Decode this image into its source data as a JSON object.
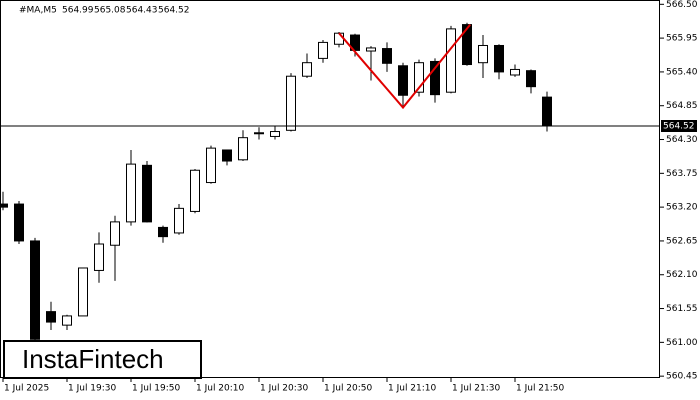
{
  "chart_data": {
    "type": "candlestick",
    "symbol": "#MA,M5",
    "watermark": "InstaFintech",
    "categories": [
      "1 Jul 2025",
      null,
      null,
      null,
      "1 Jul 19:30",
      null,
      null,
      null,
      "1 Jul 19:50",
      null,
      null,
      null,
      "1 Jul 20:10",
      null,
      null,
      null,
      "1 Jul 20:30",
      null,
      null,
      null,
      "1 Jul 20:50",
      null,
      null,
      null,
      "1 Jul 21:10",
      null,
      null,
      null,
      "1 Jul 21:30",
      null,
      null,
      null,
      "1 Jul 21:50",
      null,
      null
    ],
    "open": [
      563.25,
      563.25,
      562.65,
      561.5,
      561.28,
      561.43,
      562.17,
      562.58,
      562.96,
      563.88,
      562.87,
      562.78,
      563.13,
      563.6,
      564.13,
      563.97,
      564.4,
      564.35,
      564.45,
      565.33,
      565.62,
      565.85,
      566.0,
      565.74,
      565.78,
      565.5,
      565.07,
      565.57,
      565.07,
      566.17,
      565.55,
      565.83,
      565.35,
      565.42,
      564.99
    ],
    "high": [
      563.45,
      563.3,
      562.7,
      561.66,
      561.45,
      562.21,
      562.79,
      563.06,
      564.13,
      563.95,
      562.9,
      563.25,
      563.82,
      564.2,
      564.13,
      564.45,
      564.5,
      564.52,
      565.38,
      565.7,
      565.92,
      566.05,
      566.02,
      565.82,
      565.88,
      565.55,
      565.6,
      565.62,
      566.15,
      566.2,
      566.0,
      565.85,
      565.52,
      565.44,
      565.08
    ],
    "low": [
      563.15,
      562.6,
      560.9,
      561.2,
      561.2,
      561.43,
      561.97,
      562.0,
      562.9,
      562.95,
      562.62,
      562.75,
      563.1,
      563.58,
      563.88,
      563.95,
      564.3,
      564.3,
      564.43,
      565.3,
      565.55,
      565.8,
      565.65,
      565.26,
      565.4,
      564.85,
      565.0,
      564.9,
      565.05,
      565.5,
      565.3,
      565.28,
      565.32,
      565.05,
      564.43
    ],
    "close": [
      563.2,
      562.65,
      561.05,
      561.33,
      561.43,
      562.21,
      562.6,
      562.96,
      563.9,
      562.96,
      562.72,
      563.18,
      563.8,
      564.16,
      563.95,
      564.33,
      564.41,
      564.43,
      565.33,
      565.55,
      565.88,
      566.03,
      565.75,
      565.79,
      565.54,
      565.02,
      565.55,
      565.03,
      566.1,
      565.52,
      565.83,
      565.4,
      565.44,
      565.16,
      564.52
    ],
    "up_color": "#ffffff",
    "down_color": "#000000",
    "pattern_color": "#e00000",
    "pattern": [
      {
        "x": 21,
        "y": 566.03
      },
      {
        "x": 25,
        "y": 564.82
      },
      {
        "x": 29.2,
        "y": 566.17
      }
    ],
    "ylim": [
      560.42,
      566.57
    ],
    "yticks": [
      {
        "value": 566.5,
        "label": "566.50"
      },
      565.95,
      {
        "value": 565.4,
        "label": "565.40"
      },
      564.85,
      {
        "value": 564.3,
        "label": "564.30"
      },
      563.75,
      {
        "value": 563.2,
        "label": "563.20"
      },
      562.65,
      {
        "value": 562.1,
        "label": "562.10"
      },
      561.55,
      {
        "value": 561.0,
        "label": "561.00"
      },
      560.45
    ]
  }
}
